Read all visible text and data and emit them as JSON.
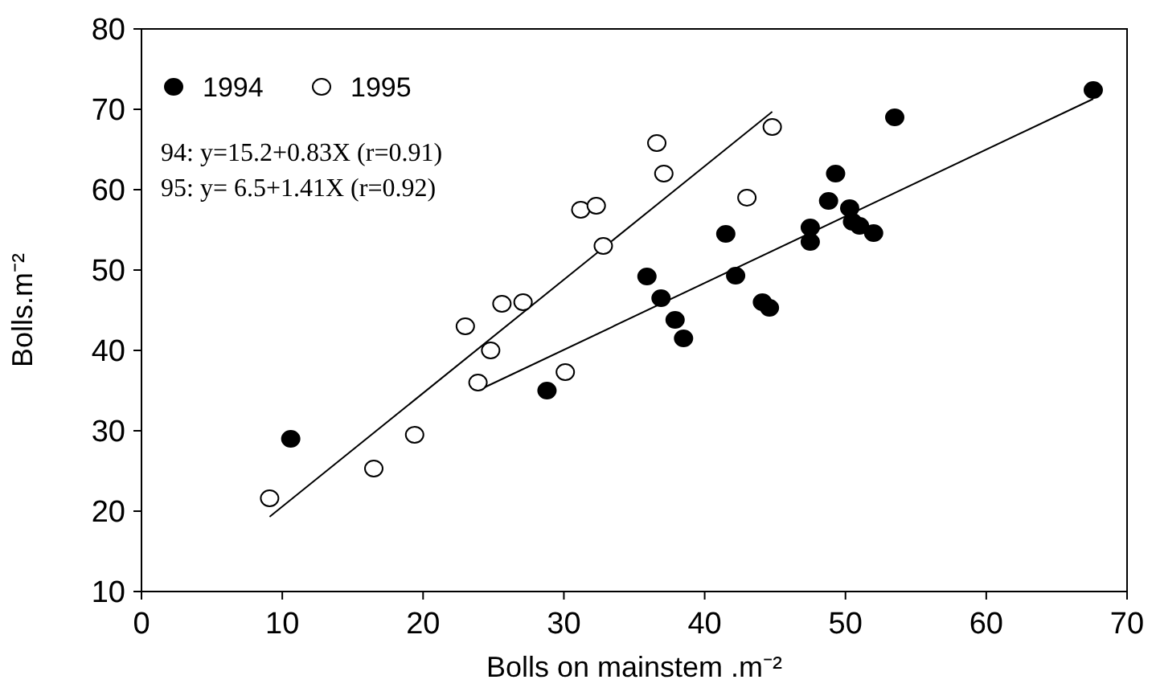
{
  "chart_data": {
    "type": "scatter",
    "xlabel": "Bolls on mainstem .m⁻²",
    "ylabel": "Bolls.m⁻²",
    "xlim": [
      0,
      70
    ],
    "xticks": [
      0,
      10,
      20,
      30,
      40,
      50,
      60,
      70
    ],
    "ylim": [
      10,
      80
    ],
    "yticks": [
      10,
      20,
      30,
      40,
      50,
      60,
      70,
      80
    ],
    "grid": false,
    "legend": "top left",
    "marker": "circle",
    "annotations": [
      "94: y=15.2+0.83X (r=0.91)",
      "95: y= 6.5+1.41X (r=0.92)"
    ],
    "series": [
      {
        "name": "1994",
        "color": "#000000",
        "x": [
          10.6,
          28.8,
          35.9,
          36.9,
          37.9,
          38.5,
          41.5,
          42.2,
          44.1,
          44.6,
          47.5,
          47.5,
          48.8,
          49.3,
          50.3,
          50.5,
          51,
          52,
          53.5,
          67.6
        ],
        "values": [
          29,
          35,
          49.2,
          46.5,
          43.8,
          41.5,
          54.5,
          49.3,
          46,
          45.3,
          55.3,
          53.5,
          58.6,
          62,
          57.7,
          56,
          55.5,
          54.6,
          69,
          72.4
        ]
      },
      {
        "name": "1995",
        "color": "#ffffff",
        "x": [
          9.1,
          16.5,
          19.4,
          23,
          23.9,
          24.8,
          25.6,
          27.1,
          30.1,
          31.2,
          32.3,
          32.8,
          36.6,
          37.1,
          43,
          44.8
        ],
        "values": [
          21.6,
          25.3,
          29.5,
          43,
          36,
          40,
          45.8,
          46,
          37.3,
          57.5,
          58,
          53,
          65.8,
          62,
          59,
          67.8
        ]
      },
      {
        "type": "line",
        "marker": "none",
        "color": "#000000",
        "x": [
          24,
          67.6
        ],
        "values": [
          35.1,
          71.3
        ]
      },
      {
        "type": "line",
        "marker": "none",
        "color": "#000000",
        "x": [
          9.1,
          44.8
        ],
        "values": [
          19.3,
          69.7
        ]
      }
    ]
  }
}
